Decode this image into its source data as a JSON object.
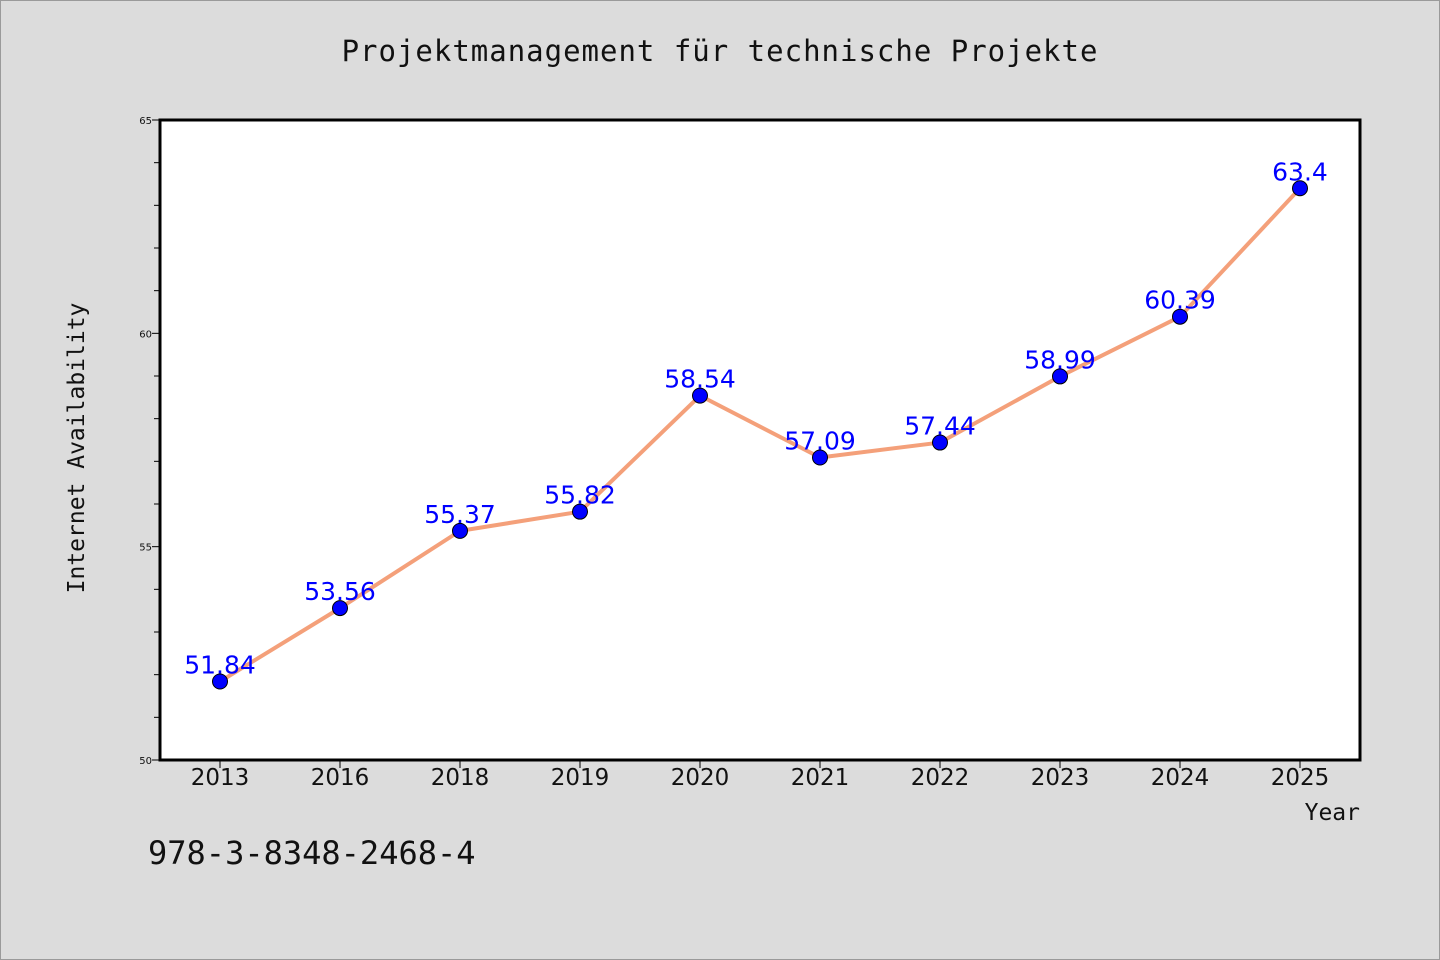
{
  "title": "Projektmanagement für technische Projekte",
  "footer_code": "978-3-8348-2468-4",
  "chart_data": {
    "type": "line",
    "title": "Projektmanagement für technische Projekte",
    "xlabel": "Year",
    "ylabel": "Internet Availability",
    "categories": [
      "2013",
      "2016",
      "2018",
      "2019",
      "2020",
      "2021",
      "2022",
      "2023",
      "2024",
      "2025"
    ],
    "values": [
      51.84,
      53.56,
      55.37,
      55.82,
      58.54,
      57.09,
      57.44,
      58.99,
      60.39,
      63.4
    ],
    "data_labels": [
      "51.84",
      "53.56",
      "55.37",
      "55.82",
      "58.54",
      "57.09",
      "57.44",
      "58.99",
      "60.39",
      "63.4"
    ],
    "ylim": [
      50,
      65
    ],
    "yticks": [
      50,
      55,
      60,
      65
    ],
    "ytick_labels": [
      "50",
      "55",
      "60",
      "65"
    ],
    "grid": false,
    "line_color": "#f4a07a",
    "marker_color": "#0000ff",
    "label_color": "#0000ff"
  }
}
